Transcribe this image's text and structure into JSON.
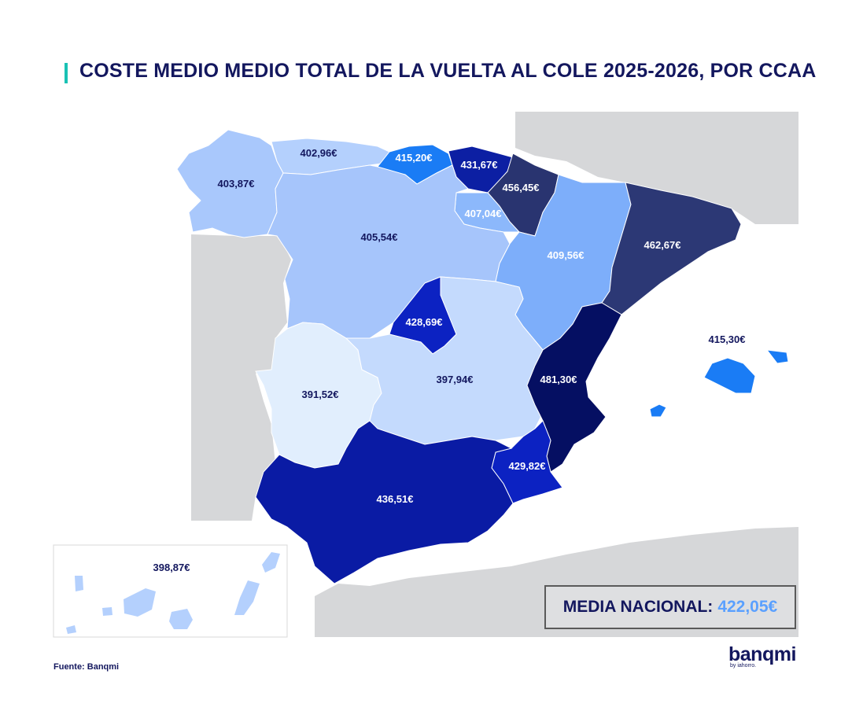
{
  "title": "COSTE MEDIO MEDIO TOTAL DE LA VUELTA AL COLE 2025-2026, POR CCAA",
  "colors": {
    "accent": "#19c2b4",
    "dark_navy": "#13175e",
    "light_blue_value": "#5aa0ff",
    "neighbor_gray": "#d6d7d9"
  },
  "regions": [
    {
      "name": "Galicia",
      "value": "403,87€",
      "color": "#a9c8fc"
    },
    {
      "name": "Asturias",
      "value": "402,96€",
      "color": "#b4d0fd"
    },
    {
      "name": "Cantabria",
      "value": "415,20€",
      "color": "#1a7cf5"
    },
    {
      "name": "País Vasco",
      "value": "431,67€",
      "color": "#0c1fa3"
    },
    {
      "name": "Navarra",
      "value": "456,45€",
      "color": "#293470"
    },
    {
      "name": "La Rioja",
      "value": "407,04€",
      "color": "#8cb8fb"
    },
    {
      "name": "Castilla y León",
      "value": "405,54€",
      "color": "#a6c5fb"
    },
    {
      "name": "Aragón",
      "value": "409,56€",
      "color": "#7daefa"
    },
    {
      "name": "Cataluña",
      "value": "462,67€",
      "color": "#2c3875"
    },
    {
      "name": "Madrid",
      "value": "428,69€",
      "color": "#0c22c2"
    },
    {
      "name": "Extremadura",
      "value": "391,52€",
      "color": "#e1eefd"
    },
    {
      "name": "Castilla-La Mancha",
      "value": "397,94€",
      "color": "#c4dafd"
    },
    {
      "name": "Comunidad Valenciana",
      "value": "481,30€",
      "color": "#050f62"
    },
    {
      "name": "Murcia",
      "value": "429,82€",
      "color": "#0c22c2"
    },
    {
      "name": "Andalucía",
      "value": "436,51€",
      "color": "#0a1ba4"
    },
    {
      "name": "Baleares",
      "value": "415,30€",
      "color": "#1a7cf5"
    },
    {
      "name": "Canarias",
      "value": "398,87€",
      "color": "#b4d0fd"
    }
  ],
  "national_average": {
    "label": "MEDIA NACIONAL:",
    "value": "422,05€"
  },
  "source": "Fuente: Banqmi",
  "logo": {
    "name": "banqmi",
    "sub": "by iahorro."
  }
}
